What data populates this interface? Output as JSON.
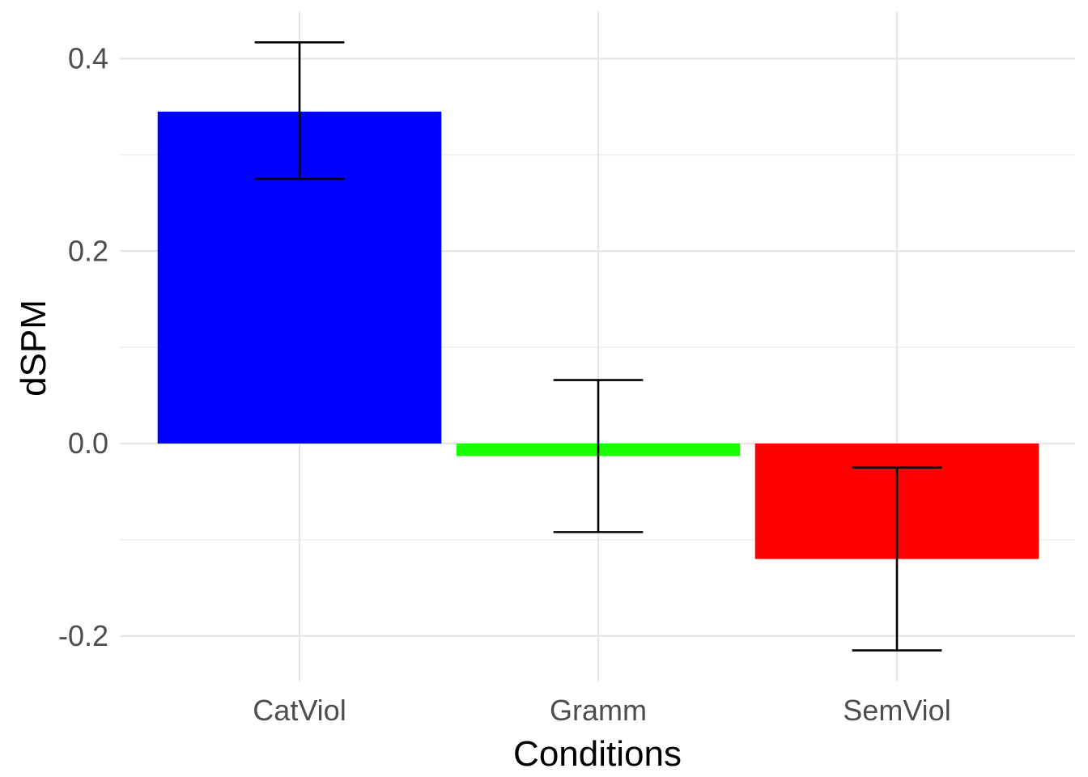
{
  "chart_data": {
    "type": "bar",
    "categories": [
      "CatViol",
      "Gramm",
      "SemViol"
    ],
    "values": [
      0.345,
      -0.013,
      -0.12
    ],
    "error_bars": [
      {
        "lower": 0.275,
        "upper": 0.417
      },
      {
        "lower": -0.092,
        "upper": 0.066
      },
      {
        "lower": -0.215,
        "upper": -0.025
      }
    ],
    "colors": [
      "#0000ff",
      "#1aff00",
      "#ff0000"
    ],
    "xlabel": "Conditions",
    "ylabel": "dSPM",
    "ylim": [
      -0.23,
      0.44
    ],
    "yticks": [
      -0.2,
      0.0,
      0.2,
      0.4
    ],
    "ytick_labels": [
      "-0.2",
      "0.0",
      "0.2",
      "0.4"
    ],
    "grid": true,
    "legend": "none"
  }
}
